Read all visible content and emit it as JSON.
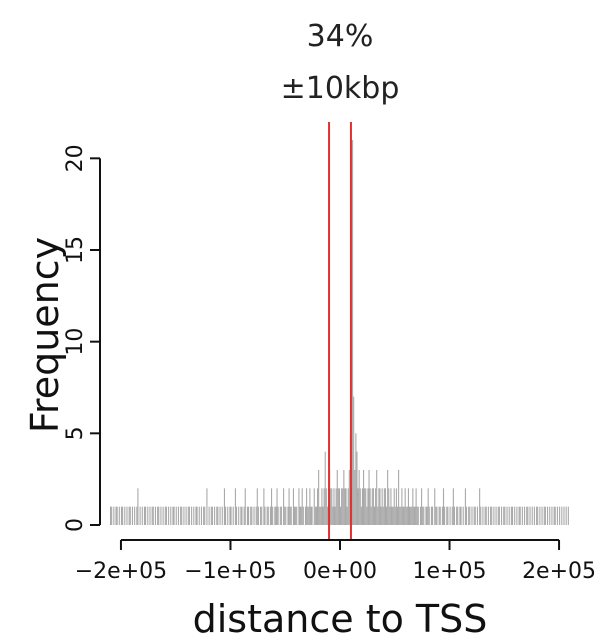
{
  "chart_data": {
    "type": "histogram",
    "title_lines": [
      "34%",
      "±10kbp"
    ],
    "xlabel": "distance to TSS",
    "ylabel": "Frequency",
    "xlim": [
      -210000,
      210000
    ],
    "ylim": [
      0,
      21
    ],
    "x_ticks": [
      {
        "value": -200000,
        "label": "−2e+05"
      },
      {
        "value": -100000,
        "label": "−1e+05"
      },
      {
        "value": 0,
        "label": "0e+00"
      },
      {
        "value": 100000,
        "label": "1e+05"
      },
      {
        "value": 200000,
        "label": "2e+05"
      }
    ],
    "y_ticks": [
      {
        "value": 0,
        "label": "0"
      },
      {
        "value": 5,
        "label": "5"
      },
      {
        "value": 10,
        "label": "10"
      },
      {
        "value": 15,
        "label": "15"
      },
      {
        "value": 20,
        "label": "20"
      }
    ],
    "vlines": [
      -10000,
      10000
    ],
    "colors": {
      "bars": "#a9a9a9",
      "vlines": "#e03030",
      "axis": "#111111"
    },
    "bin_width": 1000,
    "bins_start": -210000,
    "bin_counts": [
      1,
      1,
      0,
      1,
      0,
      1,
      1,
      0,
      1,
      0,
      1,
      1,
      0,
      1,
      0,
      1,
      0,
      1,
      1,
      0,
      1,
      0,
      1,
      0,
      1,
      2,
      0,
      1,
      0,
      1,
      0,
      1,
      1,
      0,
      1,
      0,
      1,
      0,
      1,
      1,
      0,
      1,
      0,
      1,
      1,
      0,
      1,
      0,
      1,
      0,
      1,
      1,
      0,
      1,
      0,
      1,
      0,
      1,
      1,
      0,
      1,
      0,
      1,
      0,
      1,
      1,
      0,
      1,
      0,
      1,
      0,
      1,
      1,
      0,
      1,
      0,
      1,
      0,
      1,
      1,
      0,
      1,
      0,
      1,
      0,
      1,
      1,
      0,
      2,
      0,
      1,
      0,
      1,
      1,
      0,
      1,
      0,
      1,
      1,
      0,
      1,
      0,
      1,
      0,
      2,
      1,
      0,
      1,
      0,
      1,
      1,
      0,
      1,
      0,
      2,
      1,
      0,
      1,
      0,
      1,
      1,
      0,
      1,
      2,
      0,
      1,
      1,
      0,
      1,
      1,
      0,
      1,
      0,
      1,
      2,
      1,
      0,
      1,
      1,
      0,
      2,
      1,
      0,
      1,
      1,
      0,
      1,
      2,
      1,
      0,
      1,
      1,
      2,
      1,
      0,
      1,
      1,
      0,
      2,
      1,
      1,
      0,
      1,
      2,
      1,
      1,
      0,
      2,
      1,
      1,
      1,
      0,
      2,
      1,
      1,
      2,
      1,
      0,
      1,
      2,
      1,
      1,
      2,
      1,
      1,
      0,
      2,
      1,
      1,
      2,
      3,
      1,
      1,
      2,
      1,
      2,
      4,
      2,
      1,
      2,
      3,
      2,
      2,
      1,
      2,
      1,
      2,
      3,
      2,
      2,
      1,
      2,
      2,
      3,
      2,
      2,
      1,
      2,
      3,
      5,
      2,
      21,
      7,
      3,
      5,
      4,
      2,
      3,
      2,
      1,
      2,
      3,
      2,
      2,
      1,
      2,
      3,
      2,
      1,
      2,
      2,
      1,
      2,
      3,
      1,
      2,
      2,
      1,
      2,
      1,
      2,
      2,
      1,
      3,
      2,
      1,
      2,
      1,
      1,
      2,
      1,
      2,
      1,
      3,
      1,
      1,
      2,
      1,
      1,
      2,
      1,
      1,
      2,
      1,
      1,
      1,
      2,
      1,
      1,
      2,
      1,
      1,
      0,
      1,
      2,
      1,
      1,
      0,
      1,
      1,
      2,
      1,
      0,
      1,
      1,
      0,
      2,
      1,
      1,
      0,
      1,
      1,
      0,
      1,
      2,
      1,
      0,
      1,
      1,
      0,
      1,
      0,
      1,
      2,
      1,
      0,
      1,
      1,
      0,
      1,
      1,
      0,
      1,
      0,
      2,
      1,
      0,
      1,
      1,
      0,
      1,
      0,
      1,
      1,
      0,
      1,
      0,
      2,
      1,
      0,
      1,
      0,
      1,
      1,
      0,
      1,
      0,
      1,
      1,
      0,
      1,
      0,
      1,
      0,
      1,
      1,
      0,
      1,
      0,
      1,
      1,
      0,
      1,
      0,
      1,
      0,
      1,
      1,
      0,
      1,
      0,
      1,
      0,
      1,
      1,
      0,
      1,
      0,
      1,
      0,
      1,
      1,
      0,
      1,
      0,
      1,
      0,
      1,
      0,
      1,
      1,
      0,
      1,
      0,
      1,
      0,
      1,
      1,
      0,
      1,
      0,
      1,
      0,
      1,
      0,
      1,
      1,
      0,
      1,
      0,
      1,
      0,
      1,
      0,
      1,
      0,
      1,
      0,
      1,
      0
    ]
  }
}
